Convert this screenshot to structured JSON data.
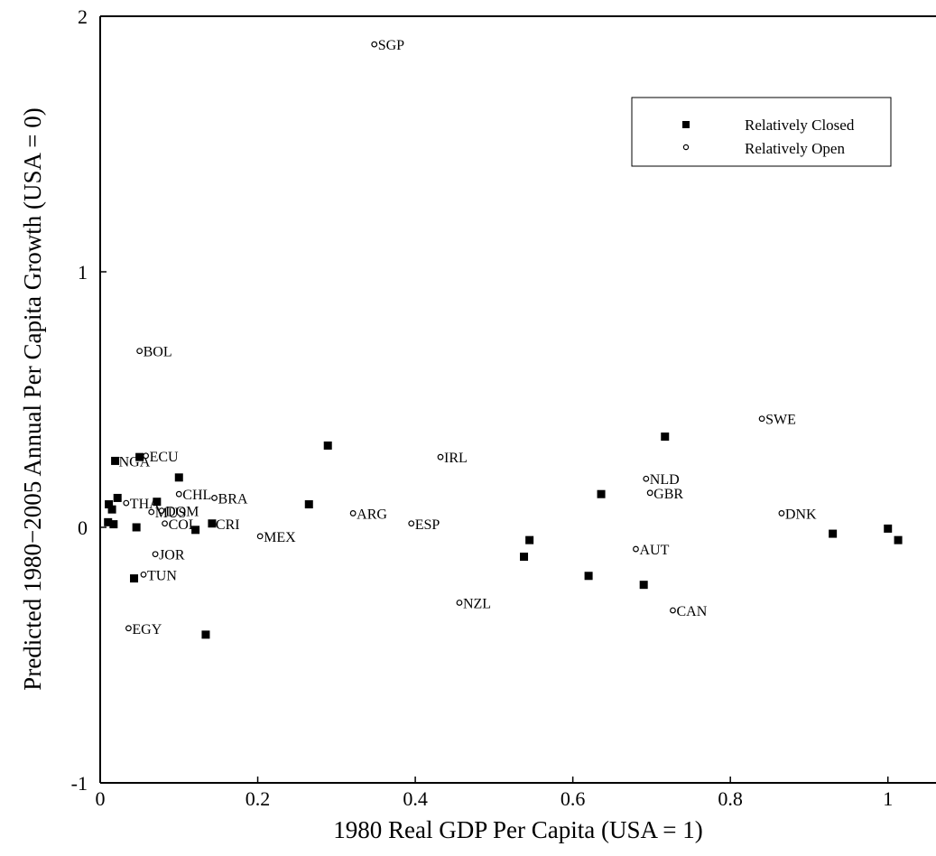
{
  "chart_data": {
    "type": "scatter",
    "xlabel": "1980 Real GDP Per Capita (USA = 1)",
    "ylabel": "Predicted 1980−2005 Annual Per Capita Growth (USA = 0)",
    "xlim": [
      0,
      1.1
    ],
    "ylim": [
      -1,
      2
    ],
    "xticks": [
      0,
      0.2,
      0.4,
      0.6,
      0.8,
      1
    ],
    "xtick_labels": [
      "0",
      "0.2",
      "0.4",
      "0.6",
      "0.8",
      "1"
    ],
    "yticks": [
      -1,
      0,
      1,
      2
    ],
    "ytick_labels": [
      "-1",
      "0",
      "1",
      "2"
    ],
    "grid": false,
    "legend_position": "top-right",
    "series": [
      {
        "name": "Relatively Closed",
        "marker": "square",
        "points": [
          {
            "x": 0.019,
            "y": 0.26,
            "label": "NGA"
          },
          {
            "x": 0.05,
            "y": 0.275,
            "label": ""
          },
          {
            "x": 0.1,
            "y": 0.195,
            "label": ""
          },
          {
            "x": 0.022,
            "y": 0.115,
            "label": ""
          },
          {
            "x": 0.011,
            "y": 0.09,
            "label": ""
          },
          {
            "x": 0.015,
            "y": 0.07,
            "label": ""
          },
          {
            "x": 0.01,
            "y": 0.02,
            "label": ""
          },
          {
            "x": 0.017,
            "y": 0.012,
            "label": ""
          },
          {
            "x": 0.046,
            "y": 0.0,
            "label": ""
          },
          {
            "x": 0.072,
            "y": 0.1,
            "label": ""
          },
          {
            "x": 0.121,
            "y": -0.01,
            "label": ""
          },
          {
            "x": 0.142,
            "y": 0.015,
            "label": "CRI"
          },
          {
            "x": 0.265,
            "y": 0.09,
            "label": ""
          },
          {
            "x": 0.289,
            "y": 0.32,
            "label": ""
          },
          {
            "x": 0.043,
            "y": -0.2,
            "label": ""
          },
          {
            "x": 0.134,
            "y": -0.42,
            "label": ""
          },
          {
            "x": 0.538,
            "y": -0.115,
            "label": ""
          },
          {
            "x": 0.545,
            "y": -0.05,
            "label": ""
          },
          {
            "x": 0.62,
            "y": -0.19,
            "label": ""
          },
          {
            "x": 0.636,
            "y": 0.13,
            "label": ""
          },
          {
            "x": 0.69,
            "y": -0.225,
            "label": ""
          },
          {
            "x": 0.717,
            "y": 0.355,
            "label": ""
          },
          {
            "x": 0.93,
            "y": -0.025,
            "label": ""
          },
          {
            "x": 1.0,
            "y": -0.005,
            "label": ""
          },
          {
            "x": 1.013,
            "y": -0.05,
            "label": ""
          }
        ]
      },
      {
        "name": "Relatively Open",
        "marker": "circle",
        "points": [
          {
            "x": 0.348,
            "y": 1.89,
            "label": "SGP"
          },
          {
            "x": 0.05,
            "y": 0.69,
            "label": "BOL"
          },
          {
            "x": 0.058,
            "y": 0.28,
            "label": "ECU"
          },
          {
            "x": 0.1,
            "y": 0.13,
            "label": "CHL"
          },
          {
            "x": 0.145,
            "y": 0.115,
            "label": "BRA"
          },
          {
            "x": 0.033,
            "y": 0.095,
            "label": "THA"
          },
          {
            "x": 0.078,
            "y": 0.065,
            "label": "DOM"
          },
          {
            "x": 0.065,
            "y": 0.06,
            "label": "MUS"
          },
          {
            "x": 0.082,
            "y": 0.015,
            "label": "COL"
          },
          {
            "x": 0.07,
            "y": -0.105,
            "label": "JOR"
          },
          {
            "x": 0.055,
            "y": -0.185,
            "label": "TUN"
          },
          {
            "x": 0.036,
            "y": -0.395,
            "label": "EGY"
          },
          {
            "x": 0.203,
            "y": -0.035,
            "label": "MEX"
          },
          {
            "x": 0.321,
            "y": 0.055,
            "label": "ARG"
          },
          {
            "x": 0.395,
            "y": 0.015,
            "label": "ESP"
          },
          {
            "x": 0.432,
            "y": 0.275,
            "label": "IRL"
          },
          {
            "x": 0.456,
            "y": -0.295,
            "label": "NZL"
          },
          {
            "x": 0.68,
            "y": -0.085,
            "label": "AUT"
          },
          {
            "x": 0.693,
            "y": 0.19,
            "label": "NLD"
          },
          {
            "x": 0.698,
            "y": 0.135,
            "label": "GBR"
          },
          {
            "x": 0.727,
            "y": -0.325,
            "label": "CAN"
          },
          {
            "x": 0.84,
            "y": 0.425,
            "label": "SWE"
          },
          {
            "x": 0.865,
            "y": 0.055,
            "label": "DNK"
          }
        ]
      }
    ]
  }
}
